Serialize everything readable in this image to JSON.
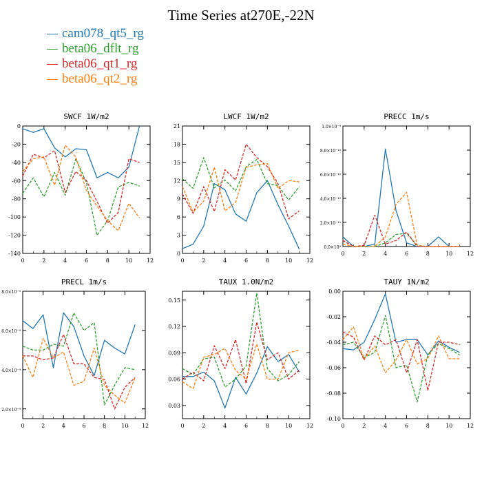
{
  "title": "Time Series at270E,-22N",
  "legend": [
    {
      "name": "cam078_qt5_rg",
      "color": "#1f77b4"
    },
    {
      "name": "beta06_dflt_rg",
      "color": "#2ca02c"
    },
    {
      "name": "beta06_qt1_rg",
      "color": "#d62728"
    },
    {
      "name": "beta06_qt2_rg",
      "color": "#ff7f0e"
    }
  ],
  "chart_data": [
    {
      "type": "line",
      "title": "SWCF   1W/m2",
      "x": [
        0,
        1,
        2,
        3,
        4,
        5,
        6,
        7,
        8,
        9,
        10,
        11
      ],
      "xlim": [
        0,
        12
      ],
      "xticks": [
        "0",
        "2",
        "4",
        "6",
        "8",
        "10",
        "12"
      ],
      "ylim": [
        -140,
        0
      ],
      "yticks": [
        -140,
        -120,
        -100,
        -80,
        -60,
        -40,
        -20,
        0
      ],
      "ytick_labels": [
        "-140",
        "-120",
        "-100",
        "-80",
        "-60",
        "-40",
        "-20",
        "0"
      ],
      "series": [
        {
          "name": "cam078_qt5_rg",
          "color": "#1f77b4",
          "dash": false,
          "values": [
            -3,
            -7,
            -3,
            -24,
            -34,
            -25,
            -26,
            -57,
            -51,
            -57,
            -45,
            0
          ]
        },
        {
          "name": "beta06_dflt_rg",
          "color": "#2ca02c",
          "dash": true,
          "values": [
            -74,
            -57,
            -78,
            -51,
            -76,
            -36,
            -62,
            -120,
            -104,
            -67,
            -62,
            -66
          ]
        },
        {
          "name": "beta06_qt1_rg",
          "color": "#d62728",
          "dash": true,
          "values": [
            -55,
            -31,
            -35,
            -27,
            -73,
            -50,
            -60,
            -83,
            -107,
            -95,
            -36,
            -40
          ]
        },
        {
          "name": "beta06_qt2_rg",
          "color": "#ff7f0e",
          "dash": true,
          "values": [
            -50,
            -36,
            -34,
            -65,
            -21,
            -34,
            -71,
            -88,
            -104,
            -115,
            -85,
            -101
          ]
        }
      ]
    },
    {
      "type": "line",
      "title": "LWCF   1W/m2",
      "x": [
        0,
        1,
        2,
        3,
        4,
        5,
        6,
        7,
        8,
        9,
        10,
        11
      ],
      "xlim": [
        0,
        12
      ],
      "xticks": [
        "0",
        "2",
        "4",
        "6",
        "8",
        "10",
        "12"
      ],
      "ylim": [
        0,
        21
      ],
      "yticks": [
        0,
        3,
        6,
        9,
        12,
        15,
        18,
        21
      ],
      "ytick_labels": [
        "0",
        "3",
        "6",
        "9",
        "12",
        "15",
        "18",
        "21"
      ],
      "series": [
        {
          "name": "cam078_qt5_rg",
          "color": "#1f77b4",
          "dash": false,
          "values": [
            0.8,
            1.5,
            4.5,
            11.5,
            10.5,
            6.5,
            5.3,
            10,
            12,
            8,
            4.5,
            0.7
          ]
        },
        {
          "name": "beta06_dflt_rg",
          "color": "#2ca02c",
          "dash": true,
          "values": [
            12.3,
            10.7,
            15.8,
            10.8,
            12.1,
            10.3,
            14.3,
            15.5,
            11.5,
            11.2,
            8.8,
            11
          ]
        },
        {
          "name": "beta06_qt1_rg",
          "color": "#d62728",
          "dash": true,
          "values": [
            9.8,
            6.6,
            11,
            6.9,
            13.8,
            12.1,
            18,
            15.8,
            14.3,
            11.5,
            5.7,
            7
          ]
        },
        {
          "name": "beta06_qt2_rg",
          "color": "#ff7f0e",
          "dash": true,
          "values": [
            11,
            6.8,
            8.6,
            14.2,
            7,
            8.4,
            14.2,
            14.6,
            14.8,
            10.7,
            12,
            11.8
          ]
        }
      ]
    },
    {
      "type": "line",
      "title": "PRECC   1m/s",
      "x": [
        0,
        1,
        2,
        3,
        4,
        5,
        6,
        7,
        8,
        9,
        10,
        11
      ],
      "xlim": [
        0,
        12
      ],
      "xticks": [
        "0",
        "2",
        "4",
        "6",
        "8",
        "10",
        "12"
      ],
      "ylim": [
        0,
        1e-09
      ],
      "yticks": [
        0,
        2e-10,
        4e-10,
        6e-10,
        8e-10,
        1e-09
      ],
      "ytick_labels": [
        "0.0×10⁰",
        "2.0×10⁻¹⁰",
        "4.0×10⁻¹⁰",
        "6.0×10⁻¹⁰",
        "8.0×10⁻¹⁰",
        "1.0×10⁻⁹"
      ],
      "series": [
        {
          "name": "cam078_qt5_rg",
          "color": "#1f77b4",
          "dash": false,
          "values": [
            8e-11,
            0,
            0,
            2e-11,
            8.1e-10,
            3e-10,
            3e-11,
            0,
            0,
            8e-11,
            0,
            0
          ]
        },
        {
          "name": "beta06_dflt_rg",
          "color": "#2ca02c",
          "dash": true,
          "values": [
            5e-11,
            0,
            0,
            0,
            3e-11,
            1e-10,
            1.1e-10,
            1e-11,
            0,
            0,
            0,
            0
          ]
        },
        {
          "name": "beta06_qt1_rg",
          "color": "#d62728",
          "dash": true,
          "values": [
            5e-11,
            0,
            1e-11,
            2.6e-10,
            2e-11,
            5e-11,
            1.2e-10,
            0,
            0,
            0,
            0,
            0
          ]
        },
        {
          "name": "beta06_qt2_rg",
          "color": "#ff7f0e",
          "dash": true,
          "values": [
            2e-11,
            0,
            0,
            0,
            8e-11,
            3.5e-10,
            4.5e-10,
            1e-11,
            0,
            0,
            0,
            0
          ]
        }
      ]
    },
    {
      "type": "line",
      "title": "PRECL   1m/s",
      "x": [
        0,
        1,
        2,
        3,
        4,
        5,
        6,
        7,
        8,
        9,
        10,
        11
      ],
      "xlim": [
        0,
        12
      ],
      "xticks": [
        "0",
        "2",
        "4",
        "6",
        "8",
        "10",
        "12"
      ],
      "ylim": [
        1.5e-09,
        8e-09
      ],
      "yticks": [
        2e-09,
        4e-09,
        6e-09,
        8e-09
      ],
      "ytick_labels": [
        "2.0×10⁻⁹",
        "4.0×10⁻⁹",
        "6.0×10⁻⁹",
        "8.0×10⁻⁹"
      ],
      "series": [
        {
          "name": "cam078_qt5_rg",
          "color": "#1f77b4",
          "dash": false,
          "values": [
            6.5e-09,
            6.1e-09,
            6.8e-09,
            4.1e-09,
            6.9e-09,
            6.2e-09,
            4.7e-09,
            3.7e-09,
            5.5e-09,
            5.1e-09,
            4.8e-09,
            6.3e-09
          ]
        },
        {
          "name": "beta06_dflt_rg",
          "color": "#2ca02c",
          "dash": true,
          "values": [
            5.2e-09,
            5e-09,
            5e-09,
            5.3e-09,
            5.2e-09,
            6.9e-09,
            6e-09,
            6.4e-09,
            2.2e-09,
            3.2e-09,
            4.1e-09,
            4e-09
          ]
        },
        {
          "name": "beta06_qt1_rg",
          "color": "#d62728",
          "dash": true,
          "values": [
            4.7e-09,
            4.7e-09,
            4.5e-09,
            4.6e-09,
            5.8e-09,
            4.3e-09,
            4.3e-09,
            3.6e-09,
            3.5e-09,
            2e-09,
            3.1e-09,
            3.6e-09
          ]
        },
        {
          "name": "beta06_qt2_rg",
          "color": "#ff7f0e",
          "dash": true,
          "values": [
            4.7e-09,
            3.6e-09,
            5.6e-09,
            4.6e-09,
            4.9e-09,
            3.2e-09,
            3.4e-09,
            5.1e-09,
            3.2e-09,
            2.7e-09,
            2.3e-09,
            3.6e-09
          ]
        }
      ]
    },
    {
      "type": "line",
      "title": "TAUX   1.0N/m2",
      "x": [
        0,
        1,
        2,
        3,
        4,
        5,
        6,
        7,
        8,
        9,
        10,
        11
      ],
      "xlim": [
        0,
        12
      ],
      "xticks": [
        "0",
        "2",
        "4",
        "6",
        "8",
        "10",
        "12"
      ],
      "ylim": [
        0.015,
        0.16
      ],
      "yticks": [
        0.03,
        0.06,
        0.09,
        0.12,
        0.15
      ],
      "ytick_labels": [
        "0.03",
        "0.06",
        "0.09",
        "0.12",
        "0.15"
      ],
      "series": [
        {
          "name": "cam078_qt5_rg",
          "color": "#1f77b4",
          "dash": false,
          "values": [
            0.063,
            0.063,
            0.068,
            0.058,
            0.027,
            0.062,
            0.043,
            0.067,
            0.097,
            0.08,
            0.088,
            0.068
          ]
        },
        {
          "name": "beta06_dflt_rg",
          "color": "#2ca02c",
          "dash": true,
          "values": [
            0.072,
            0.065,
            0.083,
            0.085,
            0.051,
            0.06,
            0.075,
            0.158,
            0.072,
            0.058,
            0.065,
            0.08
          ]
        },
        {
          "name": "beta06_qt1_rg",
          "color": "#d62728",
          "dash": true,
          "values": [
            0.06,
            0.068,
            0.058,
            0.098,
            0.072,
            0.105,
            0.055,
            0.125,
            0.082,
            0.09,
            0.06,
            0.07
          ]
        },
        {
          "name": "beta06_qt2_rg",
          "color": "#ff7f0e",
          "dash": true,
          "values": [
            0.057,
            0.049,
            0.085,
            0.088,
            0.095,
            0.07,
            0.06,
            0.1,
            0.06,
            0.06,
            0.09,
            0.093
          ]
        }
      ]
    },
    {
      "type": "line",
      "title": "TAUY   1N/m2",
      "x": [
        0,
        1,
        2,
        3,
        4,
        5,
        6,
        7,
        8,
        9,
        10,
        11
      ],
      "xlim": [
        0,
        12
      ],
      "xticks": [
        "0",
        "2",
        "4",
        "6",
        "8",
        "10",
        "12"
      ],
      "ylim": [
        -0.1,
        0
      ],
      "yticks": [
        -0.1,
        -0.08,
        -0.06,
        -0.04,
        -0.02,
        0
      ],
      "ytick_labels": [
        "-0.10",
        "-0.08",
        "-0.06",
        "-0.04",
        "-0.02",
        "0.00"
      ],
      "series": [
        {
          "name": "cam078_qt5_rg",
          "color": "#1f77b4",
          "dash": false,
          "values": [
            -0.045,
            -0.046,
            -0.04,
            -0.022,
            -0.002,
            -0.04,
            -0.038,
            -0.038,
            -0.05,
            -0.039,
            -0.044,
            -0.048
          ]
        },
        {
          "name": "beta06_dflt_rg",
          "color": "#2ca02c",
          "dash": true,
          "values": [
            -0.042,
            -0.04,
            -0.052,
            -0.048,
            -0.019,
            -0.06,
            -0.058,
            -0.087,
            -0.05,
            -0.041,
            -0.045,
            -0.05
          ]
        },
        {
          "name": "beta06_qt1_rg",
          "color": "#d62728",
          "dash": true,
          "values": [
            -0.032,
            -0.036,
            -0.054,
            -0.035,
            -0.042,
            -0.038,
            -0.064,
            -0.038,
            -0.078,
            -0.04,
            -0.04,
            -0.042
          ]
        },
        {
          "name": "beta06_qt2_rg",
          "color": "#ff7f0e",
          "dash": true,
          "values": [
            -0.038,
            -0.028,
            -0.053,
            -0.043,
            -0.064,
            -0.054,
            -0.038,
            -0.057,
            -0.053,
            -0.035,
            -0.053,
            -0.053
          ]
        }
      ]
    }
  ]
}
